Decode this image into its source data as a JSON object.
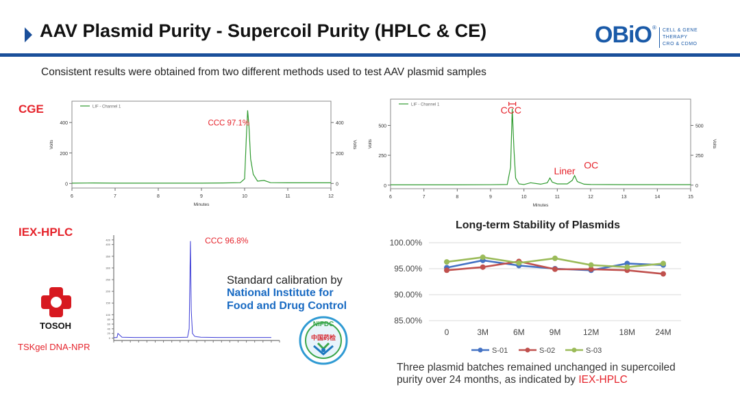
{
  "header": {
    "title": "AAV Plasmid Purity - Supercoil Purity (HPLC & CE)",
    "logo_text": "OBiO",
    "logo_reg": "®",
    "logo_lines": [
      "CELL & GENE",
      "THERAPY",
      "CRO & CDMO"
    ]
  },
  "subtitle": "Consistent results were obtained from two different methods used to test AAV plasmid samples",
  "sections": {
    "cge_label": "CGE",
    "iex_label": "IEX-HPLC"
  },
  "calibration": {
    "line1": "Standard calibration by",
    "line2": "National Institute for",
    "line3": "Food and Drug Control",
    "seal_text": "NIFDC",
    "seal_cn": "中国药检"
  },
  "vendor": {
    "name": "TOSOH",
    "column": "TSKgel DNA-NPR"
  },
  "bottom_note": {
    "line1": "Three plasmid batches remained unchanged in supercoiled",
    "line2_prefix": "purity over 24 months, as indicated by ",
    "line2_highlight": "IEX-HPLC"
  },
  "colors": {
    "brand_blue": "#1a4f9a",
    "accent_red": "#e5232b",
    "trace_green": "#2e9a2e",
    "trace_blue": "#3b3bd6"
  },
  "chart_data": [
    {
      "id": "cge-left",
      "type": "line",
      "legend": "LIF - Channel 1",
      "xlabel": "Minutes",
      "ylabel": "Volts",
      "xlim": [
        6,
        12
      ],
      "ylim": [
        -30,
        540
      ],
      "xticks": [
        6,
        7,
        8,
        9,
        10,
        11,
        12
      ],
      "yticks": [
        0,
        200,
        400
      ],
      "x": [
        6.0,
        6.5,
        7.0,
        7.5,
        8.0,
        8.5,
        9.0,
        9.5,
        9.9,
        10.0,
        10.04,
        10.07,
        10.1,
        10.14,
        10.2,
        10.3,
        10.45,
        10.6,
        11.0,
        11.5,
        12.0
      ],
      "y": [
        2,
        3,
        2,
        2,
        2,
        2,
        2,
        3,
        5,
        30,
        300,
        480,
        380,
        160,
        60,
        15,
        20,
        5,
        4,
        4,
        4
      ],
      "annotations": [
        {
          "text": "CCC 97.1%",
          "x": 9.15,
          "y": 380
        }
      ]
    },
    {
      "id": "cge-right",
      "type": "line",
      "legend": "LIF - Channel 1",
      "xlabel": "Minutes",
      "ylabel": "Volts",
      "xlim": [
        6,
        15
      ],
      "ylim": [
        -30,
        720
      ],
      "xticks": [
        6,
        7,
        8,
        9,
        10,
        11,
        12,
        13,
        14,
        15
      ],
      "yticks": [
        0,
        250,
        500
      ],
      "x": [
        6.0,
        7.0,
        8.0,
        9.0,
        9.5,
        9.6,
        9.65,
        9.7,
        9.75,
        9.85,
        10.0,
        10.2,
        10.5,
        10.7,
        10.78,
        10.85,
        11.0,
        11.3,
        11.45,
        11.52,
        11.6,
        11.8,
        12.0,
        13.0,
        14.0,
        15.0
      ],
      "y": [
        2,
        2,
        2,
        3,
        5,
        150,
        640,
        300,
        60,
        10,
        5,
        20,
        8,
        20,
        60,
        25,
        10,
        10,
        40,
        80,
        30,
        8,
        5,
        4,
        4,
        4
      ],
      "annotations": [
        {
          "text": "CCC",
          "x": 9.3,
          "y": 600
        },
        {
          "text": "Liner",
          "x": 10.9,
          "y": 90
        },
        {
          "text": "OC",
          "x": 11.8,
          "y": 140
        }
      ]
    },
    {
      "id": "iex-hplc",
      "type": "line",
      "xlim": [
        0,
        40
      ],
      "ylim": [
        -10,
        440
      ],
      "yticks": [
        0,
        20,
        40,
        60,
        80,
        100,
        150,
        200,
        250,
        300,
        350,
        400,
        420
      ],
      "x": [
        0,
        0.8,
        1.0,
        2,
        5,
        10,
        15,
        17.8,
        18.2,
        18.5,
        18.7,
        19.0,
        19.5,
        20.0,
        21,
        25,
        30,
        35,
        38
      ],
      "y": [
        2,
        3,
        20,
        4,
        3,
        3,
        3,
        4,
        40,
        415,
        120,
        20,
        8,
        6,
        4,
        3,
        3,
        3,
        3
      ],
      "annotations": [
        {
          "text": "CCC 96.8%",
          "x": 22,
          "y": 405
        }
      ]
    },
    {
      "id": "stability",
      "type": "line",
      "title": "Long-term Stability of Plasmids",
      "categories": [
        "0",
        "3M",
        "6M",
        "9M",
        "12M",
        "18M",
        "24M"
      ],
      "ylim": [
        85,
        100
      ],
      "yticks": [
        "85.00%",
        "90.00%",
        "95.00%",
        "100.00%"
      ],
      "legend_position": "bottom",
      "grid": true,
      "series": [
        {
          "name": "S-01",
          "color": "#4472c4",
          "values": [
            95.2,
            96.6,
            95.6,
            95.0,
            94.7,
            96.0,
            95.7
          ]
        },
        {
          "name": "S-02",
          "color": "#c0504d",
          "values": [
            94.7,
            95.3,
            96.4,
            94.9,
            94.9,
            94.7,
            94.0
          ]
        },
        {
          "name": "S-03",
          "color": "#9bbb59",
          "values": [
            96.3,
            97.2,
            96.1,
            97.0,
            95.7,
            95.3,
            96.0
          ]
        }
      ]
    }
  ]
}
